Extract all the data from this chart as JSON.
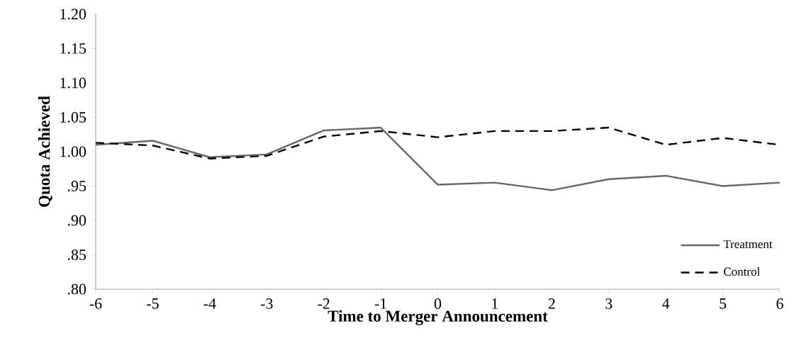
{
  "chart_data": {
    "type": "line",
    "xlabel": "Time to Merger Announcement",
    "ylabel": "Quota Achieved",
    "x": [
      -6,
      -5,
      -4,
      -3,
      -2,
      -1,
      0,
      1,
      2,
      3,
      4,
      5,
      6
    ],
    "series": [
      {
        "name": "Treatment",
        "color": "#666666",
        "line_style": "solid",
        "values": [
          1.01,
          1.016,
          0.992,
          0.996,
          1.031,
          1.035,
          0.952,
          0.955,
          0.944,
          0.96,
          0.965,
          0.95,
          0.955
        ]
      },
      {
        "name": "Control",
        "color": "#000000",
        "line_style": "dashed",
        "values": [
          1.013,
          1.009,
          0.99,
          0.994,
          1.022,
          1.03,
          1.021,
          1.03,
          1.03,
          1.035,
          1.01,
          1.02,
          1.01
        ]
      }
    ],
    "xlim": [
      -6,
      6
    ],
    "xticks": [
      -6,
      -5,
      -4,
      -3,
      -2,
      -1,
      0,
      1,
      2,
      3,
      4,
      5,
      6
    ],
    "ylim": [
      0.8,
      1.2
    ],
    "yticks": [
      {
        "value": 0.8,
        "label": ".80"
      },
      {
        "value": 0.85,
        "label": ".85"
      },
      {
        "value": 0.9,
        "label": ".90"
      },
      {
        "value": 0.95,
        "label": ".95"
      },
      {
        "value": 1.0,
        "label": "1.00"
      },
      {
        "value": 1.05,
        "label": "1.05"
      },
      {
        "value": 1.1,
        "label": "1.10"
      },
      {
        "value": 1.15,
        "label": "1.15"
      },
      {
        "value": 1.2,
        "label": "1.20"
      }
    ],
    "grid": false,
    "legend": "bottom right"
  }
}
